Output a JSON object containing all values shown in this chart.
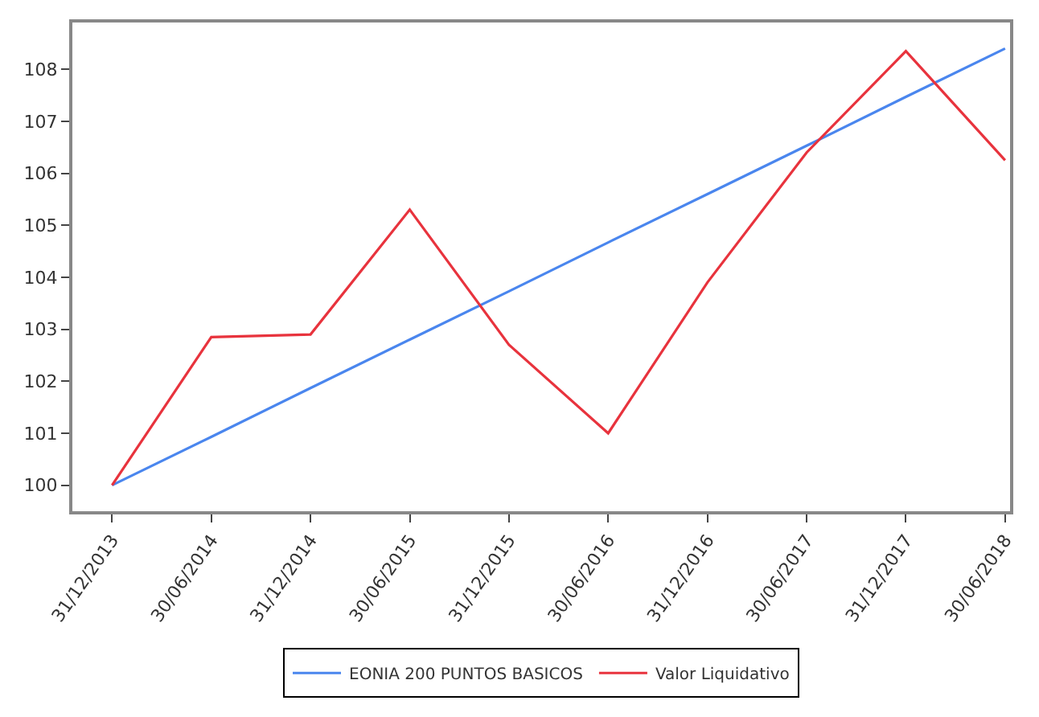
{
  "chart_data": {
    "type": "line",
    "categories": [
      "31/12/2013",
      "30/06/2014",
      "31/12/2014",
      "30/06/2015",
      "31/12/2015",
      "30/06/2016",
      "31/12/2016",
      "30/06/2017",
      "31/12/2017",
      "30/06/2018"
    ],
    "series": [
      {
        "name": "EONIA 200 PUNTOS BASICOS",
        "color": "#4a86ee",
        "values": [
          100,
          100.93,
          101.87,
          102.8,
          103.73,
          104.67,
          105.6,
          106.53,
          107.47,
          108.4
        ]
      },
      {
        "name": "Valor Liquidativo",
        "color": "#e8333d",
        "values": [
          100,
          102.85,
          102.9,
          105.3,
          102.7,
          101.0,
          103.9,
          106.4,
          108.35,
          106.25
        ]
      }
    ],
    "ylim": [
      99.5,
      108.9
    ],
    "yticks": [
      100,
      101,
      102,
      103,
      104,
      105,
      106,
      107,
      108
    ],
    "legend": "bottom",
    "marker": "none",
    "line_style": "solid"
  }
}
